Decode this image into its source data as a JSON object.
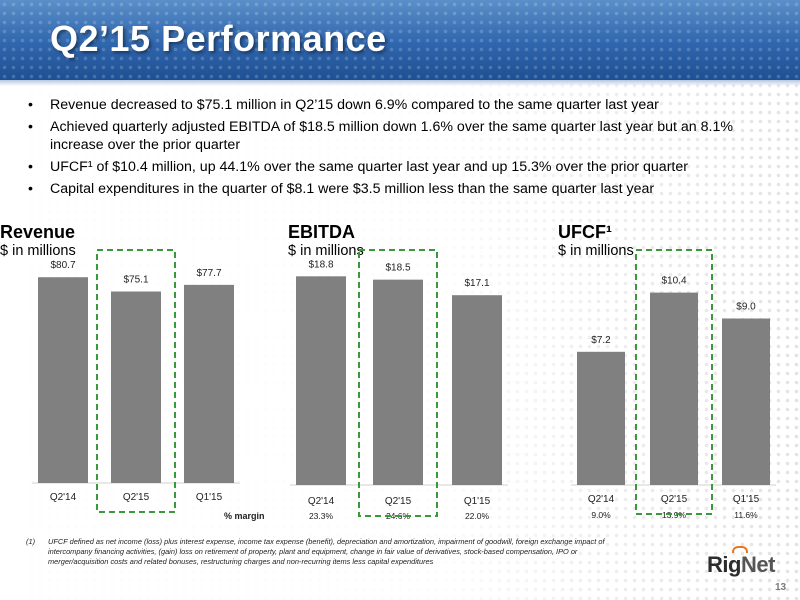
{
  "header": {
    "title": "Q2’15 Performance"
  },
  "bullets": [
    "Revenue decreased to $75.1 million in Q2’15 down 6.9% compared to the same quarter last year",
    "Achieved quarterly adjusted EBITDA of $18.5 million down 1.6% over the same quarter last year but an 8.1% increase over the prior quarter",
    "UFCF¹ of $10.4 million, up 44.1% over the same quarter last year and up 15.3% over the prior quarter",
    "Capital expenditures in the quarter of $8.1 were $3.5 million less than the same quarter last year"
  ],
  "bullet_symbol": "•",
  "panels": {
    "revenue": {
      "title": "Revenue",
      "subtitle": "$ in millions"
    },
    "ebitda": {
      "title": "EBITDA",
      "subtitle": "$ in millions"
    },
    "ufcf": {
      "title": "UFCF¹",
      "subtitle": "$ in millions"
    }
  },
  "margin_label": "% margin",
  "chart_data": [
    {
      "type": "bar",
      "title": "Revenue",
      "ylabel": "$ in millions",
      "categories": [
        "Q2'14",
        "Q2'15",
        "Q1'15"
      ],
      "values": [
        80.7,
        75.1,
        77.7
      ],
      "data_labels": [
        "$80.7",
        "$75.1",
        "$77.7"
      ],
      "highlight_category": "Q2'15",
      "ylim": [
        0,
        86
      ],
      "bar_color": "#808080"
    },
    {
      "type": "bar",
      "title": "EBITDA",
      "ylabel": "$ in millions",
      "categories": [
        "Q2'14",
        "Q2'15",
        "Q1'15"
      ],
      "values": [
        18.8,
        18.5,
        17.1
      ],
      "data_labels": [
        "$18.8",
        "$18.5",
        "$17.1"
      ],
      "margins": [
        "23.3%",
        "24.6%",
        "22.0%"
      ],
      "highlight_category": "Q2'15",
      "ylim": [
        0,
        19.7
      ],
      "bar_color": "#808080"
    },
    {
      "type": "bar",
      "title": "UFCF¹",
      "ylabel": "$ in millions",
      "categories": [
        "Q2'14",
        "Q2'15",
        "Q1'15"
      ],
      "values": [
        7.2,
        10.4,
        9.0
      ],
      "data_labels": [
        "$7.2",
        "$10.4",
        "$9.0"
      ],
      "margins": [
        "9.0%",
        "13.9%",
        "11.6%"
      ],
      "highlight_category": "Q2'15",
      "ylim": [
        0,
        13.7
      ],
      "bar_color": "#808080"
    }
  ],
  "colors": {
    "header": "#2f66ad",
    "bar": "#808080",
    "highlight": "#3a9a3a",
    "logo_accent": "#e87722"
  },
  "footnote": {
    "number": "(1)",
    "text": "UFCF defined as net income (loss) plus interest expense, income tax expense (benefit), depreciation and amortization, impairment of goodwill, foreign exchange impact of intercompany financing activities, (gain) loss on retirement of property, plant and equipment, change in fair value of derivatives, stock-based compensation, IPO or merger/acquisition costs and related bonuses, restructuring charges and non-recurring items less capital expenditures"
  },
  "logo": {
    "part1": "Rig",
    "part2": "Net"
  },
  "page_number": "13"
}
